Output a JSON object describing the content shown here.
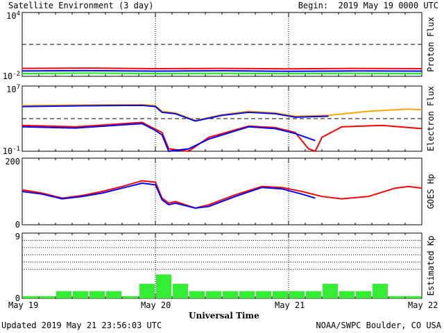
{
  "header": {
    "title": "Satellite Environment (3 day)",
    "begin": "Begin:  2019 May 19 0000 UTC"
  },
  "footer": {
    "updated": "Updated 2019 May 21 23:56:03 UTC",
    "credit": "NOAA/SWPC Boulder, CO USA",
    "xlabel": "Universal Time"
  },
  "x_ticks": [
    "May 19",
    "May 20",
    "May 21",
    "May 22"
  ],
  "colors": {
    "red": "#ff0000",
    "blue": "#0000ff",
    "green": "#00ff00",
    "orange": "#ffa500",
    "bar": "#33ee33"
  },
  "chart_data": [
    {
      "type": "line",
      "ylabel": "Proton Flux",
      "scale": "log",
      "ylim": [
        0.01,
        10000
      ],
      "y_ticks": [
        "10^4",
        "10^-2"
      ],
      "threshold": 10,
      "x_days": [
        0,
        3
      ],
      "series": [
        {
          "color": "red",
          "x": [
            0,
            0.5,
            1,
            1.5,
            2,
            2.5,
            3
          ],
          "y": [
            0.055,
            0.06,
            0.052,
            0.055,
            0.05,
            0.055,
            0.052
          ]
        },
        {
          "color": "blue",
          "x": [
            0,
            0.5,
            1,
            1.5,
            2,
            2.5,
            3
          ],
          "y": [
            0.032,
            0.034,
            0.031,
            0.033,
            0.03,
            0.032,
            0.031
          ]
        },
        {
          "color": "green",
          "x": [
            0,
            0.5,
            1,
            1.5,
            2,
            2.5,
            3
          ],
          "y": [
            0.018,
            0.02,
            0.018,
            0.019,
            0.018,
            0.019,
            0.018
          ]
        }
      ]
    },
    {
      "type": "line",
      "ylabel": "Electron Flux",
      "scale": "log",
      "ylim": [
        0.1,
        10000000
      ],
      "y_ticks": [
        "10^7",
        "10^-1"
      ],
      "threshold": 1000,
      "x_days": [
        0,
        3
      ],
      "series": [
        {
          "color": "orange",
          "x": [
            0,
            0.3,
            0.6,
            0.9,
            1.0,
            1.05,
            1.15,
            1.3,
            1.5,
            1.7,
            1.9,
            2.05,
            2.3,
            2.6,
            2.9,
            3.0
          ],
          "y": [
            40000,
            45000,
            50000,
            52000,
            40000,
            8000,
            5000,
            600,
            3000,
            8000,
            5000,
            2000,
            2500,
            8000,
            15000,
            12000
          ]
        },
        {
          "color": "blue",
          "x": [
            0,
            0.3,
            0.6,
            0.9,
            1.0,
            1.05,
            1.15,
            1.3,
            1.5,
            1.7,
            1.9,
            2.05,
            2.3
          ],
          "y": [
            30000,
            35000,
            40000,
            42000,
            30000,
            6000,
            4000,
            500,
            2500,
            6000,
            4000,
            1500,
            2000
          ]
        },
        {
          "color": "red",
          "x": [
            0,
            0.4,
            0.9,
            1.0,
            1.05,
            1.1,
            1.25,
            1.4,
            1.7,
            1.9,
            2.05,
            2.1,
            2.15,
            2.2,
            2.25,
            2.4,
            2.7,
            3.0
          ],
          "y": [
            150,
            100,
            350,
            50,
            20,
            0.2,
            0.1,
            5,
            120,
            80,
            20,
            2,
            0.2,
            0.1,
            5,
            100,
            150,
            60
          ]
        },
        {
          "color": "blue",
          "x": [
            0,
            0.4,
            0.9,
            1.0,
            1.05,
            1.1,
            1.25,
            1.4,
            1.7,
            1.9,
            2.05,
            2.2
          ],
          "y": [
            100,
            70,
            250,
            35,
            10,
            0.1,
            0.2,
            3,
            100,
            60,
            15,
            2
          ]
        }
      ]
    },
    {
      "type": "line",
      "ylabel": "GOES Hp",
      "scale": "linear",
      "ylim": [
        0,
        200
      ],
      "y_ticks": [
        "200",
        "0"
      ],
      "x_days": [
        0,
        3
      ],
      "series": [
        {
          "color": "red",
          "x": [
            0,
            0.15,
            0.3,
            0.45,
            0.6,
            0.75,
            0.9,
            1.0,
            1.05,
            1.1,
            1.15,
            1.3,
            1.4,
            1.6,
            1.8,
            1.95,
            2.1,
            2.25,
            2.4,
            2.6,
            2.8,
            2.9,
            3.0
          ],
          "y": [
            105,
            95,
            80,
            88,
            100,
            115,
            132,
            128,
            80,
            65,
            70,
            50,
            60,
            90,
            115,
            112,
            100,
            85,
            78,
            85,
            110,
            115,
            110
          ]
        },
        {
          "color": "blue",
          "x": [
            0,
            0.15,
            0.3,
            0.45,
            0.6,
            0.75,
            0.9,
            1.0,
            1.05,
            1.1,
            1.15,
            1.3,
            1.4,
            1.6,
            1.8,
            1.95,
            2.1,
            2.2
          ],
          "y": [
            100,
            92,
            78,
            85,
            95,
            110,
            125,
            120,
            75,
            60,
            65,
            50,
            55,
            85,
            112,
            108,
            92,
            80
          ]
        }
      ]
    },
    {
      "type": "bar",
      "ylabel": "Estimated Kp",
      "ylim": [
        0,
        9
      ],
      "y_ticks": [
        "9",
        "0"
      ],
      "gridlines": [
        4,
        5,
        6,
        7,
        8,
        9
      ],
      "values": [
        0.3,
        0.3,
        1,
        1,
        1,
        1,
        0.3,
        2,
        3.3,
        2,
        1,
        1,
        1,
        1,
        1,
        1,
        1,
        1,
        2,
        1,
        1,
        2,
        0.3,
        0.3
      ]
    }
  ]
}
